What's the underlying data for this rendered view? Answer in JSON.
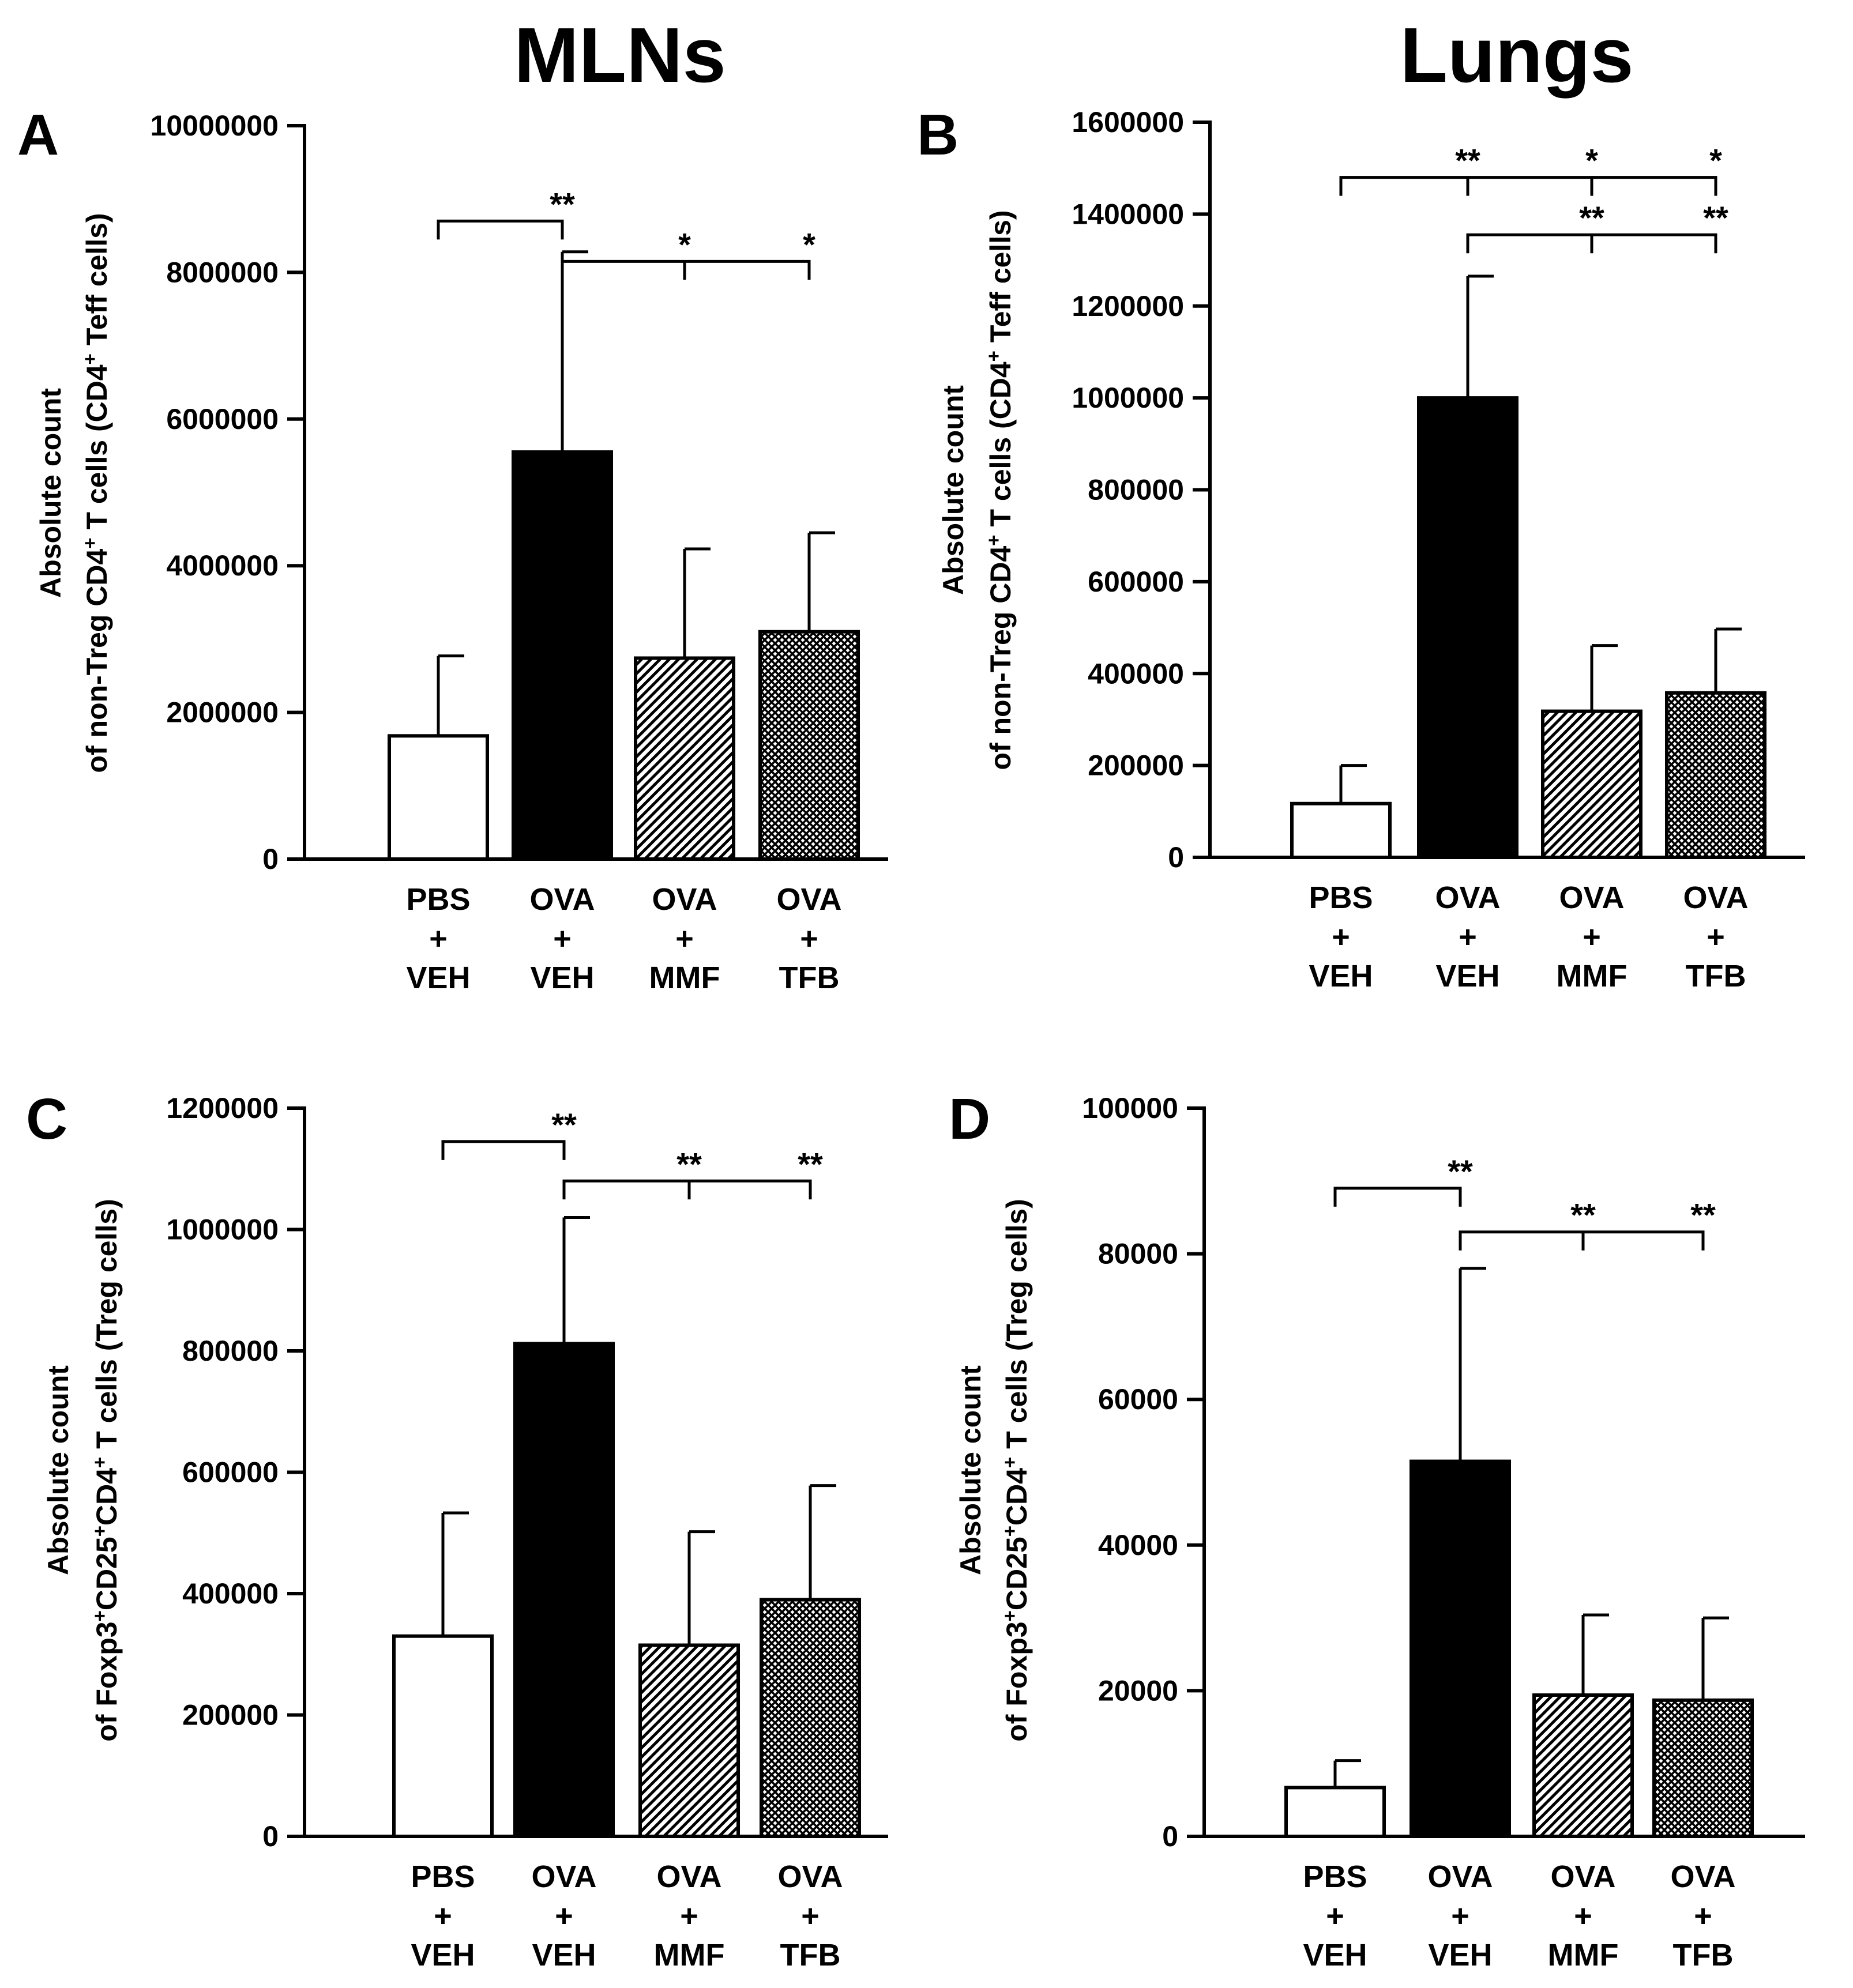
{
  "column_titles": [
    "MLNs",
    "Lungs"
  ],
  "category_labels": [
    [
      "PBS",
      "+",
      "VEH"
    ],
    [
      "OVA",
      "+",
      "VEH"
    ],
    [
      "OVA",
      "+",
      "MMF"
    ],
    [
      "OVA",
      "+",
      "TFB"
    ]
  ],
  "bar_fills": [
    "open",
    "solid",
    "diagonal-hatch",
    "crosshatch"
  ],
  "colors": {
    "ink": "#000000",
    "background": "#ffffff"
  },
  "chart_data": [
    {
      "panel": "A",
      "type": "bar",
      "column": "MLNs",
      "title": "MLNs",
      "categories": [
        "PBS + VEH",
        "OVA + VEH",
        "OVA + MMF",
        "OVA + TFB"
      ],
      "values": [
        1680000,
        5550000,
        2740000,
        3100000
      ],
      "errors": [
        1090000,
        2730000,
        1490000,
        1350000
      ],
      "ylim": [
        0,
        10000000
      ],
      "yticks": [
        "0",
        "2000000",
        "4000000",
        "6000000",
        "8000000",
        "10000000"
      ],
      "ylabel_line1": "Absolute count",
      "ylabel_line2": {
        "parts": [
          {
            "t": "of non-Treg CD4"
          },
          {
            "t": "+",
            "sup": true
          },
          {
            "t": " T cells (CD4"
          },
          {
            "t": "+",
            "sup": true
          },
          {
            "t": " Teff cells)"
          }
        ]
      },
      "ylabel_full": "Absolute count of non-Treg CD4+ T cells (CD4+ Teff cells)",
      "significance": [
        {
          "from": 0,
          "to": 1,
          "label": "**",
          "level": 8700000
        },
        {
          "from": 1,
          "to": [
            2,
            3
          ],
          "labels": [
            "*",
            "*"
          ],
          "level": 8150000
        }
      ]
    },
    {
      "panel": "B",
      "type": "bar",
      "column": "Lungs",
      "title": "Lungs",
      "categories": [
        "PBS + VEH",
        "OVA + VEH",
        "OVA + MMF",
        "OVA + TFB"
      ],
      "values": [
        117000,
        1000000,
        318000,
        358000
      ],
      "errors": [
        83000,
        265000,
        143000,
        139000
      ],
      "ylim": [
        0,
        1600000
      ],
      "yticks": [
        "0",
        "200000",
        "400000",
        "600000",
        "800000",
        "1000000",
        "1200000",
        "1400000",
        "1600000"
      ],
      "ylabel_line1": "Absolute count",
      "ylabel_line2": {
        "parts": [
          {
            "t": "of non-Treg CD4"
          },
          {
            "t": "+",
            "sup": true
          },
          {
            "t": " T cells (CD4"
          },
          {
            "t": "+",
            "sup": true
          },
          {
            "t": " Teff cells)"
          }
        ]
      },
      "ylabel_full": "Absolute count of non-Treg CD4+ T cells (CD4+ Teff cells)",
      "significance": [
        {
          "from": 0,
          "to": [
            1,
            2,
            3
          ],
          "labels": [
            "**",
            "*",
            "*"
          ],
          "level": 1480000
        },
        {
          "from": 1,
          "to": [
            2,
            3
          ],
          "labels": [
            "**",
            "**"
          ],
          "level": 1355000
        }
      ]
    },
    {
      "panel": "C",
      "type": "bar",
      "column": "MLNs",
      "title": "",
      "categories": [
        "PBS + VEH",
        "OVA + VEH",
        "OVA + MMF",
        "OVA + TFB"
      ],
      "values": [
        330000,
        812000,
        315000,
        390000
      ],
      "errors": [
        203000,
        208000,
        187000,
        188000
      ],
      "ylim": [
        0,
        1200000
      ],
      "yticks": [
        "0",
        "200000",
        "400000",
        "600000",
        "800000",
        "1000000",
        "1200000"
      ],
      "ylabel_line1": "Absolute count",
      "ylabel_line2": {
        "parts": [
          {
            "t": "of Foxp3"
          },
          {
            "t": "+",
            "sup": true
          },
          {
            "t": "CD25"
          },
          {
            "t": "+",
            "sup": true
          },
          {
            "t": "CD4"
          },
          {
            "t": "+",
            "sup": true
          },
          {
            "t": " T cells (Treg cells)"
          }
        ]
      },
      "ylabel_full": "Absolute count of Foxp3+CD25+CD4+ T cells (Treg cells)",
      "significance": [
        {
          "from": 0,
          "to": 1,
          "label": "**",
          "level": 1145000
        },
        {
          "from": 1,
          "to": [
            2,
            3
          ],
          "labels": [
            "**",
            "**"
          ],
          "level": 1080000
        }
      ]
    },
    {
      "panel": "D",
      "type": "bar",
      "column": "Lungs",
      "title": "",
      "categories": [
        "PBS + VEH",
        "OVA + VEH",
        "OVA + MMF",
        "OVA + TFB"
      ],
      "values": [
        6700,
        51500,
        19400,
        18700
      ],
      "errors": [
        3700,
        26500,
        11000,
        11300
      ],
      "ylim": [
        0,
        100000
      ],
      "yticks": [
        "0",
        "20000",
        "40000",
        "60000",
        "80000",
        "100000"
      ],
      "ylabel_line1": "Absolute count",
      "ylabel_line2": {
        "parts": [
          {
            "t": "of Foxp3"
          },
          {
            "t": "+",
            "sup": true
          },
          {
            "t": "CD25"
          },
          {
            "t": "+",
            "sup": true
          },
          {
            "t": "CD4"
          },
          {
            "t": "+",
            "sup": true
          },
          {
            "t": " T cells (Treg cells)"
          }
        ]
      },
      "ylabel_full": "Absolute count of Foxp3+CD25+CD4+ T cells (Treg cells)",
      "significance": [
        {
          "from": 0,
          "to": 1,
          "label": "**",
          "level": 89000
        },
        {
          "from": 1,
          "to": [
            2,
            3
          ],
          "labels": [
            "**",
            "**"
          ],
          "level": 83000
        }
      ]
    }
  ]
}
